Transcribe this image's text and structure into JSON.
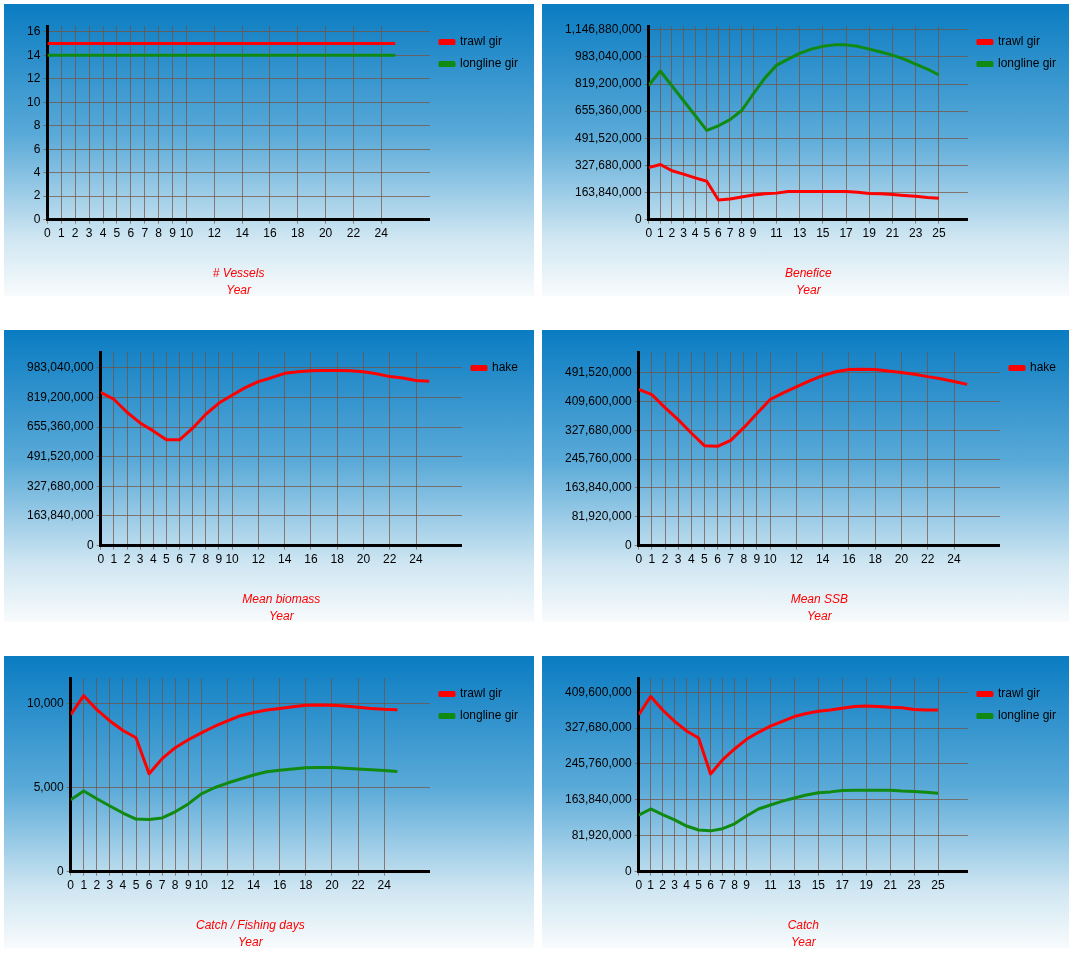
{
  "chart_data": [
    {
      "type": "line",
      "title": "# Vessels",
      "xlabel": "Year",
      "legend": "top right",
      "grid": true,
      "marker": "none",
      "line_style": "solid",
      "x": [
        0,
        1,
        2,
        3,
        4,
        5,
        6,
        7,
        8,
        9,
        10,
        11,
        12,
        13,
        14,
        15,
        16,
        17,
        18,
        19,
        20,
        21,
        22,
        23,
        24,
        25
      ],
      "xlim": [
        0,
        27.5
      ],
      "xticks": [
        0,
        1,
        2,
        3,
        4,
        5,
        6,
        7,
        8,
        9,
        10,
        12,
        14,
        16,
        18,
        20,
        22,
        24
      ],
      "ylim": [
        0,
        16.5
      ],
      "yticks": [
        0,
        2,
        4,
        6,
        8,
        10,
        12,
        14,
        16
      ],
      "series": [
        {
          "name": "trawl gir",
          "color": "#ff0000",
          "values": [
            15,
            15,
            15,
            15,
            15,
            15,
            15,
            15,
            15,
            15,
            15,
            15,
            15,
            15,
            15,
            15,
            15,
            15,
            15,
            15,
            15,
            15,
            15,
            15,
            15,
            15
          ]
        },
        {
          "name": "longline gir",
          "color": "#108a10",
          "values": [
            14,
            14,
            14,
            14,
            14,
            14,
            14,
            14,
            14,
            14,
            14,
            14,
            14,
            14,
            14,
            14,
            14,
            14,
            14,
            14,
            14,
            14,
            14,
            14,
            14,
            14
          ]
        }
      ]
    },
    {
      "type": "line",
      "title": "Benefice",
      "xlabel": "Year",
      "legend": "top right",
      "grid": true,
      "marker": "none",
      "line_style": "solid",
      "x": [
        0,
        1,
        2,
        3,
        4,
        5,
        6,
        7,
        8,
        9,
        10,
        11,
        12,
        13,
        14,
        15,
        16,
        17,
        18,
        19,
        20,
        21,
        22,
        23,
        24,
        25
      ],
      "xlim": [
        0,
        27.5
      ],
      "xticks": [
        0,
        1,
        2,
        3,
        4,
        5,
        6,
        7,
        8,
        9,
        11,
        13,
        15,
        17,
        19,
        21,
        23,
        25
      ],
      "ylim": [
        0,
        1170000000
      ],
      "yticks": [
        0,
        {
          "value": 163840000,
          "label": "163,840,000"
        },
        {
          "value": 327680000,
          "label": "327,680,000"
        },
        {
          "value": 491520000,
          "label": "491,520,000"
        },
        {
          "value": 655360000,
          "label": "655,360,000"
        },
        {
          "value": 819200000,
          "label": "819,200,000"
        },
        {
          "value": 983040000,
          "label": "983,040,000"
        },
        {
          "value": 1146880000,
          "label": "1,146,880,000"
        }
      ],
      "series": [
        {
          "name": "trawl gir",
          "color": "#ff0000",
          "values": [
            314000000,
            333000000,
            295000000,
            275000000,
            252000000,
            232000000,
            118000000,
            125000000,
            137000000,
            149000000,
            156000000,
            160000000,
            170000000,
            170000000,
            170000000,
            170000000,
            170000000,
            170000000,
            165000000,
            158000000,
            156000000,
            151000000,
            146000000,
            141000000,
            134000000,
            129000000
          ]
        },
        {
          "name": "longline gir",
          "color": "#108a10",
          "values": [
            812000000,
            898000000,
            808000000,
            718000000,
            629000000,
            539000000,
            567000000,
            604000000,
            659000000,
            759000000,
            855000000,
            932000000,
            970000000,
            1004000000,
            1030000000,
            1047000000,
            1056000000,
            1056000000,
            1047000000,
            1030000000,
            1013000000,
            994000000,
            970000000,
            939000000,
            910000000,
            874000000
          ]
        }
      ]
    },
    {
      "type": "line",
      "title": "Mean biomass",
      "xlabel": "Year",
      "legend": "top right",
      "grid": true,
      "marker": "none",
      "line_style": "solid",
      "x": [
        0,
        1,
        2,
        3,
        4,
        5,
        6,
        7,
        8,
        9,
        10,
        11,
        12,
        13,
        14,
        15,
        16,
        17,
        18,
        19,
        20,
        21,
        22,
        23,
        24,
        25
      ],
      "xlim": [
        0,
        27.5
      ],
      "xticks": [
        0,
        1,
        2,
        3,
        4,
        5,
        6,
        7,
        8,
        9,
        10,
        12,
        14,
        16,
        18,
        20,
        22,
        24
      ],
      "ylim": [
        0,
        1070000000
      ],
      "yticks": [
        0,
        {
          "value": 163840000,
          "label": "163,840,000"
        },
        {
          "value": 327680000,
          "label": "327,680,000"
        },
        {
          "value": 491520000,
          "label": "491,520,000"
        },
        {
          "value": 655360000,
          "label": "655,360,000"
        },
        {
          "value": 819200000,
          "label": "819,200,000"
        },
        {
          "value": 983040000,
          "label": "983,040,000"
        }
      ],
      "series": [
        {
          "name": "hake",
          "color": "#ff0000",
          "values": [
            847000000,
            809000000,
            737000000,
            678000000,
            634000000,
            585000000,
            585000000,
            649000000,
            726000000,
            788000000,
            831000000,
            873000000,
            906000000,
            928000000,
            952000000,
            961000000,
            967000000,
            968000000,
            968000000,
            967000000,
            961000000,
            950000000,
            934000000,
            926000000,
            912000000,
            908000000
          ]
        }
      ]
    },
    {
      "type": "line",
      "title": "Mean SSB",
      "xlabel": "Year",
      "legend": "top right",
      "grid": true,
      "marker": "none",
      "line_style": "solid",
      "x": [
        0,
        1,
        2,
        3,
        4,
        5,
        6,
        7,
        8,
        9,
        10,
        11,
        12,
        13,
        14,
        15,
        16,
        17,
        18,
        19,
        20,
        21,
        22,
        23,
        24,
        25
      ],
      "xlim": [
        0,
        27.5
      ],
      "xticks": [
        0,
        1,
        2,
        3,
        4,
        5,
        6,
        7,
        8,
        9,
        10,
        12,
        14,
        16,
        18,
        20,
        22,
        24
      ],
      "ylim": [
        0,
        550000000
      ],
      "yticks": [
        0,
        {
          "value": 81920000,
          "label": "81,920,000"
        },
        {
          "value": 163840000,
          "label": "163,840,000"
        },
        {
          "value": 245760000,
          "label": "245,760,000"
        },
        {
          "value": 327680000,
          "label": "327,680,000"
        },
        {
          "value": 409600000,
          "label": "409,600,000"
        },
        {
          "value": 491520000,
          "label": "491,520,000"
        }
      ],
      "series": [
        {
          "name": "hake",
          "color": "#ff0000",
          "values": [
            444000000,
            429000000,
            392000000,
            358000000,
            320000000,
            284000000,
            282000000,
            299000000,
            335000000,
            375000000,
            415000000,
            434000000,
            451000000,
            468000000,
            483000000,
            494000000,
            500000000,
            501000000,
            500000000,
            496000000,
            492000000,
            487000000,
            480000000,
            474000000,
            466000000,
            458000000
          ]
        }
      ]
    },
    {
      "type": "line",
      "title": "Catch / Fishing days",
      "xlabel": "Year",
      "legend": "top right",
      "grid": true,
      "marker": "none",
      "line_style": "solid",
      "x": [
        0,
        1,
        2,
        3,
        4,
        5,
        6,
        7,
        8,
        9,
        10,
        11,
        12,
        13,
        14,
        15,
        16,
        17,
        18,
        19,
        20,
        21,
        22,
        23,
        24,
        25
      ],
      "xlim": [
        0,
        27.5
      ],
      "xticks": [
        0,
        1,
        2,
        3,
        4,
        5,
        6,
        7,
        8,
        9,
        10,
        12,
        14,
        16,
        18,
        20,
        22,
        24
      ],
      "ylim": [
        0,
        11500
      ],
      "yticks": [
        0,
        {
          "value": 5000,
          "label": "5,000"
        },
        {
          "value": 10000,
          "label": "10,000"
        }
      ],
      "series": [
        {
          "name": "trawl gir",
          "color": "#ff0000",
          "values": [
            9330,
            10450,
            9620,
            8950,
            8380,
            7950,
            5810,
            6710,
            7360,
            7830,
            8240,
            8620,
            8950,
            9260,
            9450,
            9600,
            9690,
            9790,
            9880,
            9900,
            9880,
            9830,
            9760,
            9690,
            9640,
            9620
          ]
        },
        {
          "name": "longline gir",
          "color": "#108a10",
          "values": [
            4260,
            4790,
            4330,
            3900,
            3480,
            3120,
            3100,
            3190,
            3550,
            4020,
            4620,
            4980,
            5260,
            5500,
            5740,
            5930,
            6020,
            6100,
            6170,
            6190,
            6190,
            6140,
            6100,
            6050,
            6000,
            5950
          ]
        }
      ]
    },
    {
      "type": "line",
      "title": "Catch",
      "xlabel": "Year",
      "legend": "top right",
      "grid": true,
      "marker": "none",
      "line_style": "solid",
      "x": [
        0,
        1,
        2,
        3,
        4,
        5,
        6,
        7,
        8,
        9,
        10,
        11,
        12,
        13,
        14,
        15,
        16,
        17,
        18,
        19,
        20,
        21,
        22,
        23,
        24,
        25
      ],
      "xlim": [
        0,
        27.5
      ],
      "xticks": [
        0,
        1,
        2,
        3,
        4,
        5,
        6,
        7,
        8,
        9,
        11,
        13,
        15,
        17,
        19,
        21,
        23,
        25
      ],
      "ylim": [
        0,
        442000000
      ],
      "yticks": [
        0,
        {
          "value": 81920000,
          "label": "81,920,000"
        },
        {
          "value": 163840000,
          "label": "163,840,000"
        },
        {
          "value": 245760000,
          "label": "245,760,000"
        },
        {
          "value": 327680000,
          "label": "327,680,000"
        },
        {
          "value": 409600000,
          "label": "409,600,000"
        }
      ],
      "series": [
        {
          "name": "trawl gir",
          "color": "#ff0000",
          "values": [
            358000000,
            400000000,
            369000000,
            343000000,
            321000000,
            305000000,
            223000000,
            255000000,
            280000000,
            302000000,
            318000000,
            332000000,
            343000000,
            354000000,
            361000000,
            366000000,
            369000000,
            373000000,
            377000000,
            378000000,
            377000000,
            375000000,
            374000000,
            370000000,
            369000000,
            369000000
          ]
        },
        {
          "name": "longline gir",
          "color": "#108a10",
          "values": [
            129000000,
            143000000,
            130000000,
            118000000,
            104000000,
            95000000,
            93000000,
            98000000,
            109000000,
            127000000,
            143000000,
            152000000,
            161000000,
            168000000,
            175000000,
            180000000,
            182000000,
            185000000,
            186000000,
            186000000,
            186000000,
            186000000,
            184000000,
            183000000,
            181000000,
            179000000
          ]
        }
      ]
    }
  ]
}
